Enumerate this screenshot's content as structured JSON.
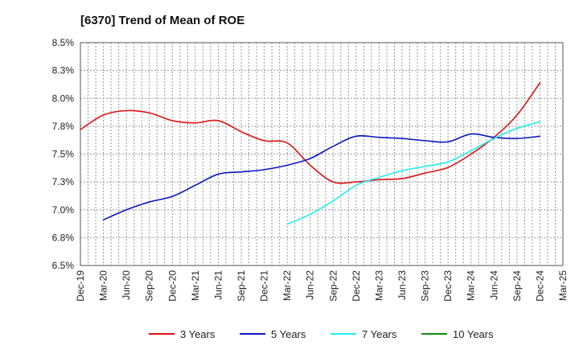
{
  "chart_data": {
    "type": "line",
    "title": "[6370]  Trend of Mean of ROE",
    "xlabel": "",
    "ylabel": "",
    "ylim": [
      6.5,
      8.5
    ],
    "y_ticks": [
      "6.5%",
      "6.8%",
      "7.0%",
      "7.3%",
      "7.5%",
      "7.8%",
      "8.0%",
      "8.3%",
      "8.5%"
    ],
    "y_tick_values": [
      6.5,
      6.75,
      7.0,
      7.25,
      7.5,
      7.75,
      8.0,
      8.25,
      8.5
    ],
    "categories": [
      "Dec-19",
      "Mar-20",
      "Jun-20",
      "Sep-20",
      "Dec-20",
      "Mar-21",
      "Jun-21",
      "Sep-21",
      "Dec-21",
      "Mar-22",
      "Jun-22",
      "Sep-22",
      "Dec-22",
      "Mar-23",
      "Jun-23",
      "Sep-23",
      "Dec-23",
      "Mar-24",
      "Jun-24",
      "Sep-24",
      "Dec-24",
      "Mar-25"
    ],
    "grid": true,
    "legend_position": "bottom",
    "series": [
      {
        "name": "3 Years",
        "color": "#dd1111",
        "values": [
          7.72,
          7.85,
          7.89,
          7.87,
          7.8,
          7.78,
          7.8,
          7.7,
          7.62,
          7.6,
          7.4,
          7.25,
          7.25,
          7.27,
          7.28,
          7.33,
          7.38,
          7.5,
          7.65,
          7.85,
          8.14,
          null
        ]
      },
      {
        "name": "5 Years",
        "color": "#0b16c4",
        "values": [
          null,
          6.91,
          7.0,
          7.07,
          7.12,
          7.22,
          7.32,
          7.34,
          7.36,
          7.4,
          7.46,
          7.57,
          7.66,
          7.65,
          7.64,
          7.62,
          7.61,
          7.68,
          7.65,
          7.64,
          7.66,
          null
        ]
      },
      {
        "name": "7 Years",
        "color": "#22eeee",
        "values": [
          null,
          null,
          null,
          null,
          null,
          null,
          null,
          null,
          null,
          6.87,
          6.96,
          7.08,
          7.22,
          7.29,
          7.35,
          7.39,
          7.43,
          7.53,
          7.64,
          7.73,
          7.79,
          null
        ]
      },
      {
        "name": "10 Years",
        "color": "#118811",
        "values": [
          null,
          null,
          null,
          null,
          null,
          null,
          null,
          null,
          null,
          null,
          null,
          null,
          null,
          null,
          null,
          null,
          null,
          null,
          null,
          null,
          null,
          null
        ]
      }
    ]
  }
}
